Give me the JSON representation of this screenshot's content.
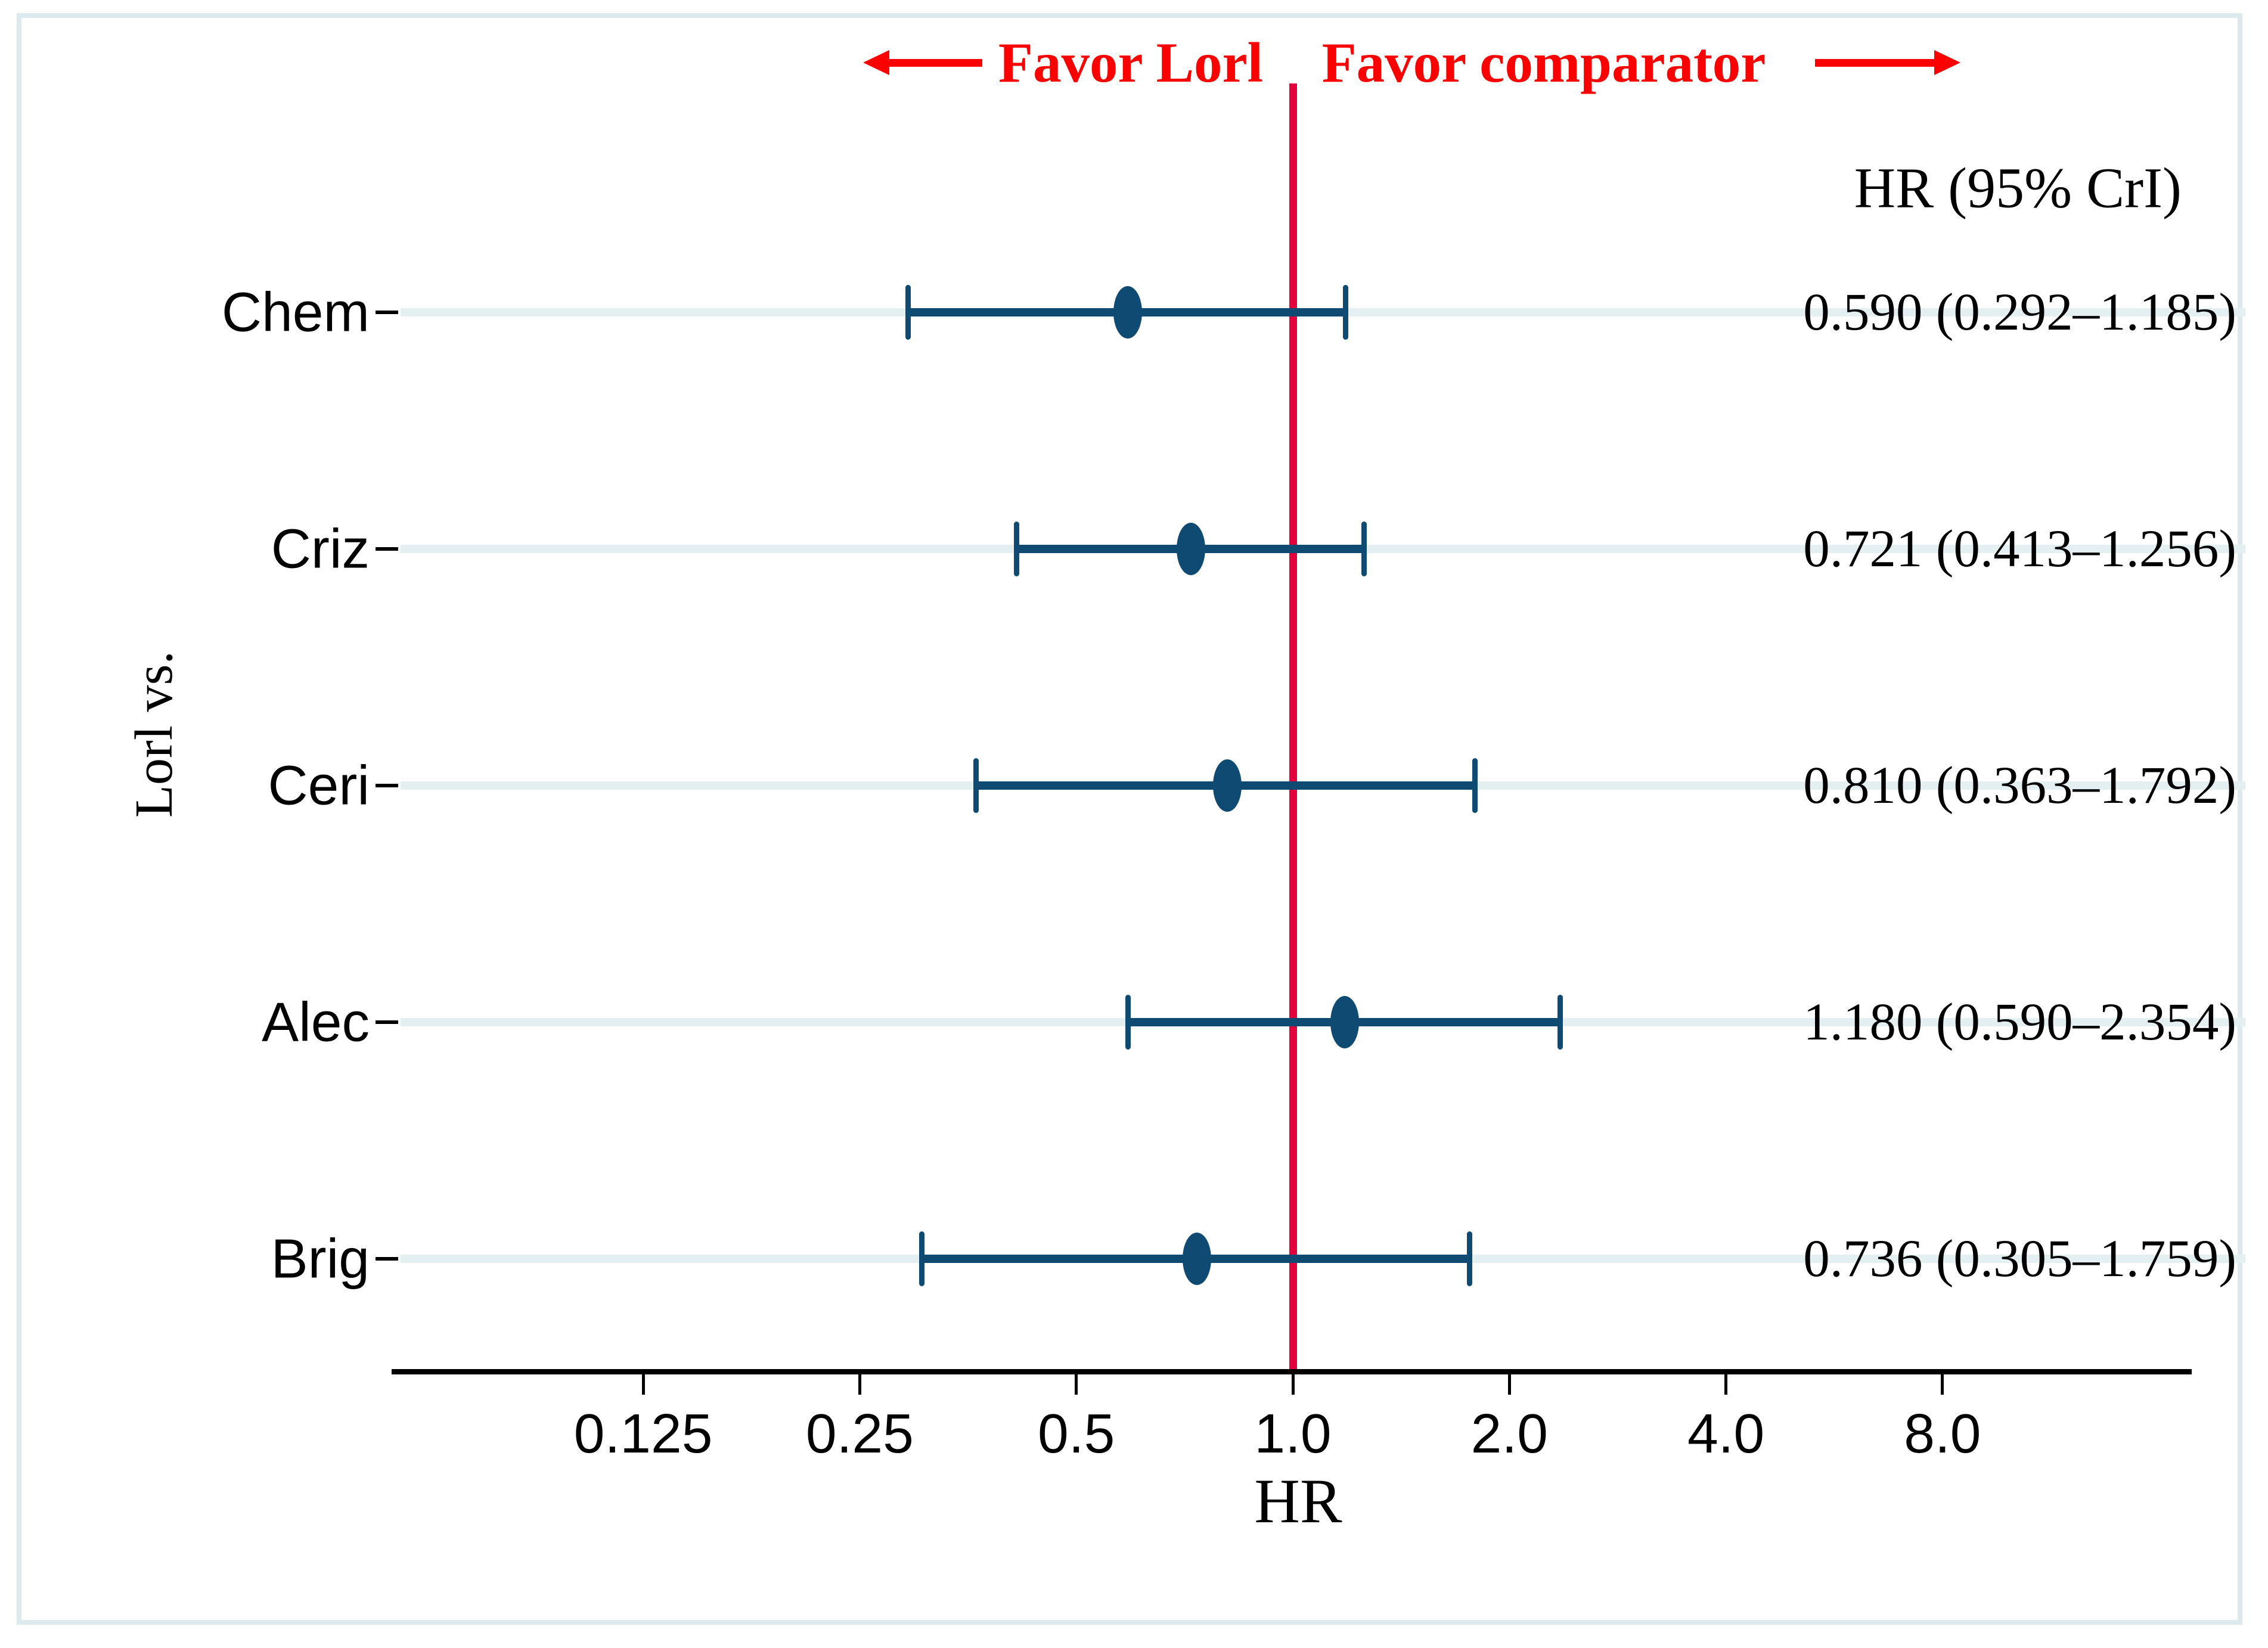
{
  "figure": {
    "favor_left": "Favor Lorl",
    "favor_right": "Favor comparator",
    "column_header": "HR (95% CrI)",
    "y_axis_label": "Lorl vs.",
    "x_axis_label": "HR"
  },
  "chart_data": {
    "type": "forest",
    "x_scale": "log2",
    "x_axis_label": "HR",
    "x_ticks": [
      0.125,
      0.25,
      0.5,
      1.0,
      2.0,
      4.0,
      8.0
    ],
    "x_tick_labels": [
      "0.125",
      "0.25",
      "0.5",
      "1.0",
      "2.0",
      "4.0",
      "8.0"
    ],
    "reference_line_x": 1.0,
    "legend": "red vertical line = no effect (HR 1.0); left favors Lorl, right favors comparator",
    "rows": [
      {
        "label": "Chem",
        "hr": 0.59,
        "ci_low": 0.292,
        "ci_high": 1.185,
        "text": "0.590 (0.292–1.185)"
      },
      {
        "label": "Criz",
        "hr": 0.721,
        "ci_low": 0.413,
        "ci_high": 1.256,
        "text": "0.721 (0.413–1.256)"
      },
      {
        "label": "Ceri",
        "hr": 0.81,
        "ci_low": 0.363,
        "ci_high": 1.792,
        "text": "0.810 (0.363–1.792)"
      },
      {
        "label": "Alec",
        "hr": 1.18,
        "ci_low": 0.59,
        "ci_high": 2.354,
        "text": "1.180 (0.590–2.354)"
      },
      {
        "label": "Brig",
        "hr": 0.736,
        "ci_low": 0.305,
        "ci_high": 1.759,
        "text": "0.736 (0.305–1.759)"
      }
    ],
    "colors": {
      "marker": "#0e4a72",
      "reference_line": "#e3003c",
      "annotation_red": "#fa0202",
      "gridline": "#e4eff1",
      "frame_border": "#dce9ed"
    }
  }
}
